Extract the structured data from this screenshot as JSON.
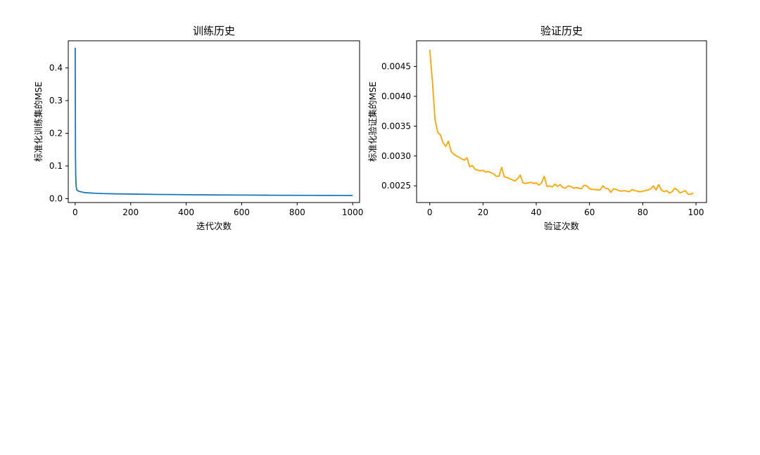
{
  "chart_data": [
    {
      "type": "line",
      "title": "训练历史",
      "xlabel": "迭代次数",
      "ylabel": "标准化训练集的MSE",
      "xlim": [
        -25,
        1025
      ],
      "ylim": [
        -0.012,
        0.483
      ],
      "xticks": [
        0,
        200,
        400,
        600,
        800,
        1000
      ],
      "yticks": [
        0.0,
        0.1,
        0.2,
        0.3,
        0.4
      ],
      "xtick_labels": [
        "0",
        "200",
        "400",
        "600",
        "800",
        "1000"
      ],
      "ytick_labels": [
        "0.0",
        "0.1",
        "0.2",
        "0.3",
        "0.4"
      ],
      "grid": false,
      "series": [
        {
          "color": "#1f77b4",
          "x": [
            0,
            1,
            2,
            3,
            4,
            5,
            6,
            8,
            10,
            15,
            20,
            30,
            40,
            60,
            80,
            100,
            150,
            200,
            300,
            400,
            500,
            600,
            700,
            800,
            900,
            1000
          ],
          "y": [
            0.462,
            0.13,
            0.07,
            0.045,
            0.034,
            0.029,
            0.027,
            0.025,
            0.024,
            0.022,
            0.021,
            0.019,
            0.018,
            0.017,
            0.016,
            0.0155,
            0.0145,
            0.014,
            0.0128,
            0.012,
            0.0113,
            0.0108,
            0.0104,
            0.0101,
            0.0098,
            0.0095
          ]
        }
      ]
    },
    {
      "type": "line",
      "title": "验证历史",
      "xlabel": "验证次数",
      "ylabel": "标准化验证集的MSE",
      "xlim": [
        -4.95,
        103.95
      ],
      "ylim": [
        0.00222,
        0.00493
      ],
      "xticks": [
        0,
        20,
        40,
        60,
        80,
        100
      ],
      "yticks": [
        0.0025,
        0.003,
        0.0035,
        0.004,
        0.0045
      ],
      "xtick_labels": [
        "0",
        "20",
        "40",
        "60",
        "80",
        "100"
      ],
      "ytick_labels": [
        "0.0025",
        "0.0030",
        "0.0035",
        "0.0040",
        "0.0045"
      ],
      "grid": false,
      "series": [
        {
          "color": "#ffa500",
          "x": [
            0,
            1,
            2,
            3,
            4,
            5,
            6,
            7,
            8,
            9,
            10,
            11,
            12,
            13,
            14,
            15,
            16,
            17,
            18,
            19,
            20,
            21,
            22,
            23,
            24,
            25,
            26,
            27,
            28,
            29,
            30,
            31,
            32,
            33,
            34,
            35,
            36,
            37,
            38,
            39,
            40,
            41,
            42,
            43,
            44,
            45,
            46,
            47,
            48,
            49,
            50,
            51,
            52,
            53,
            54,
            55,
            56,
            57,
            58,
            59,
            60,
            61,
            62,
            63,
            64,
            65,
            66,
            67,
            68,
            69,
            70,
            71,
            72,
            73,
            74,
            75,
            76,
            77,
            78,
            79,
            80,
            81,
            82,
            83,
            84,
            85,
            86,
            87,
            88,
            89,
            90,
            91,
            92,
            93,
            94,
            95,
            96,
            97,
            98,
            99
          ],
          "y": [
            0.00478,
            0.00425,
            0.0036,
            0.0034,
            0.00335,
            0.00322,
            0.00316,
            0.00325,
            0.00308,
            0.00303,
            0.003,
            0.00298,
            0.00295,
            0.00293,
            0.00297,
            0.00282,
            0.00284,
            0.00278,
            0.00276,
            0.00275,
            0.00276,
            0.00273,
            0.00274,
            0.00272,
            0.0027,
            0.00266,
            0.00266,
            0.00281,
            0.00265,
            0.00264,
            0.00262,
            0.0026,
            0.00258,
            0.00262,
            0.00268,
            0.00255,
            0.00254,
            0.00255,
            0.00256,
            0.00254,
            0.00255,
            0.00251,
            0.00255,
            0.00266,
            0.00249,
            0.0025,
            0.00248,
            0.00253,
            0.00249,
            0.00252,
            0.00247,
            0.00246,
            0.0025,
            0.00249,
            0.00246,
            0.00247,
            0.00246,
            0.00245,
            0.00251,
            0.0025,
            0.00245,
            0.00244,
            0.00244,
            0.00243,
            0.00243,
            0.0025,
            0.00246,
            0.00245,
            0.00239,
            0.00245,
            0.00244,
            0.00242,
            0.00241,
            0.00242,
            0.00241,
            0.0024,
            0.00244,
            0.00242,
            0.00241,
            0.0024,
            0.00241,
            0.00242,
            0.00243,
            0.00245,
            0.0025,
            0.00243,
            0.00252,
            0.00243,
            0.0024,
            0.00242,
            0.00238,
            0.0024,
            0.00246,
            0.00243,
            0.00238,
            0.0024,
            0.00242,
            0.00236,
            0.00236,
            0.00238
          ]
        }
      ]
    }
  ]
}
